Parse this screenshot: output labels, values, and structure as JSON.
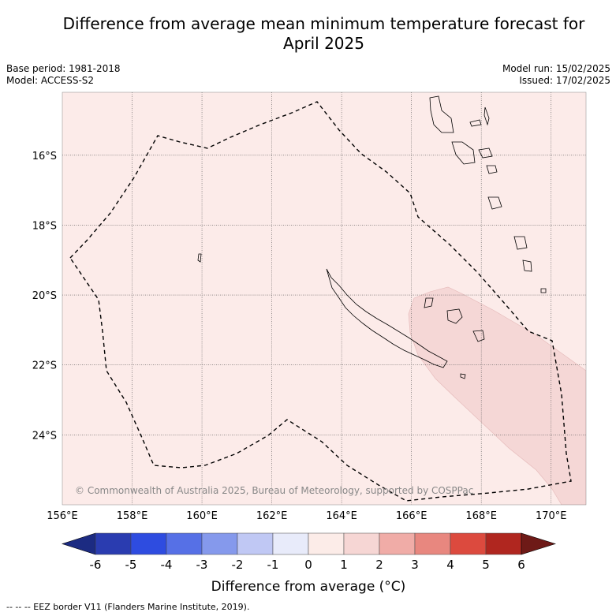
{
  "header": {
    "title_line1": "Difference from average mean minimum temperature forecast for",
    "title_line2": "April 2025",
    "base_period": "Base period: 1981-2018",
    "model": "Model: ACCESS-S2",
    "model_run": "Model run: 15/02/2025",
    "issued": "Issued: 17/02/2025"
  },
  "map": {
    "lon_range": [
      156,
      171
    ],
    "lat_range": [
      -14.2,
      -26
    ],
    "lon_ticks": [
      "156°E",
      "158°E",
      "160°E",
      "162°E",
      "164°E",
      "166°E",
      "168°E",
      "170°E"
    ],
    "lat_ticks": [
      "16°S",
      "18°S",
      "20°S",
      "22°S",
      "24°S"
    ],
    "grid": true,
    "background_anomaly_class": "0 to 1",
    "warm_patch_anomaly_class": "1 to 2",
    "copyright": "© Commonwealth of Australia 2025, Bureau of Meteorology, supported by COSPPac",
    "colors": {
      "base": "#fcebe9",
      "warm_patch": "#f5d7d6",
      "border": "#000000"
    }
  },
  "colorbar": {
    "label": "Difference from average (°C)",
    "ticks": [
      "-6",
      "-5",
      "-4",
      "-3",
      "-2",
      "-1",
      "0",
      "1",
      "2",
      "3",
      "4",
      "5",
      "6"
    ],
    "colors": [
      "#1c2b82",
      "#2a3cb0",
      "#2e4ce0",
      "#5670e6",
      "#8599ec",
      "#c0c8f4",
      "#e8ebfa",
      "#fcece8",
      "#f6d6d4",
      "#f0aca7",
      "#e8877f",
      "#dc4a3e",
      "#b0261f",
      "#6e1a17"
    ]
  },
  "footnote": "--  --  -- EEZ border V11 (Flanders Marine Institute, 2019)."
}
